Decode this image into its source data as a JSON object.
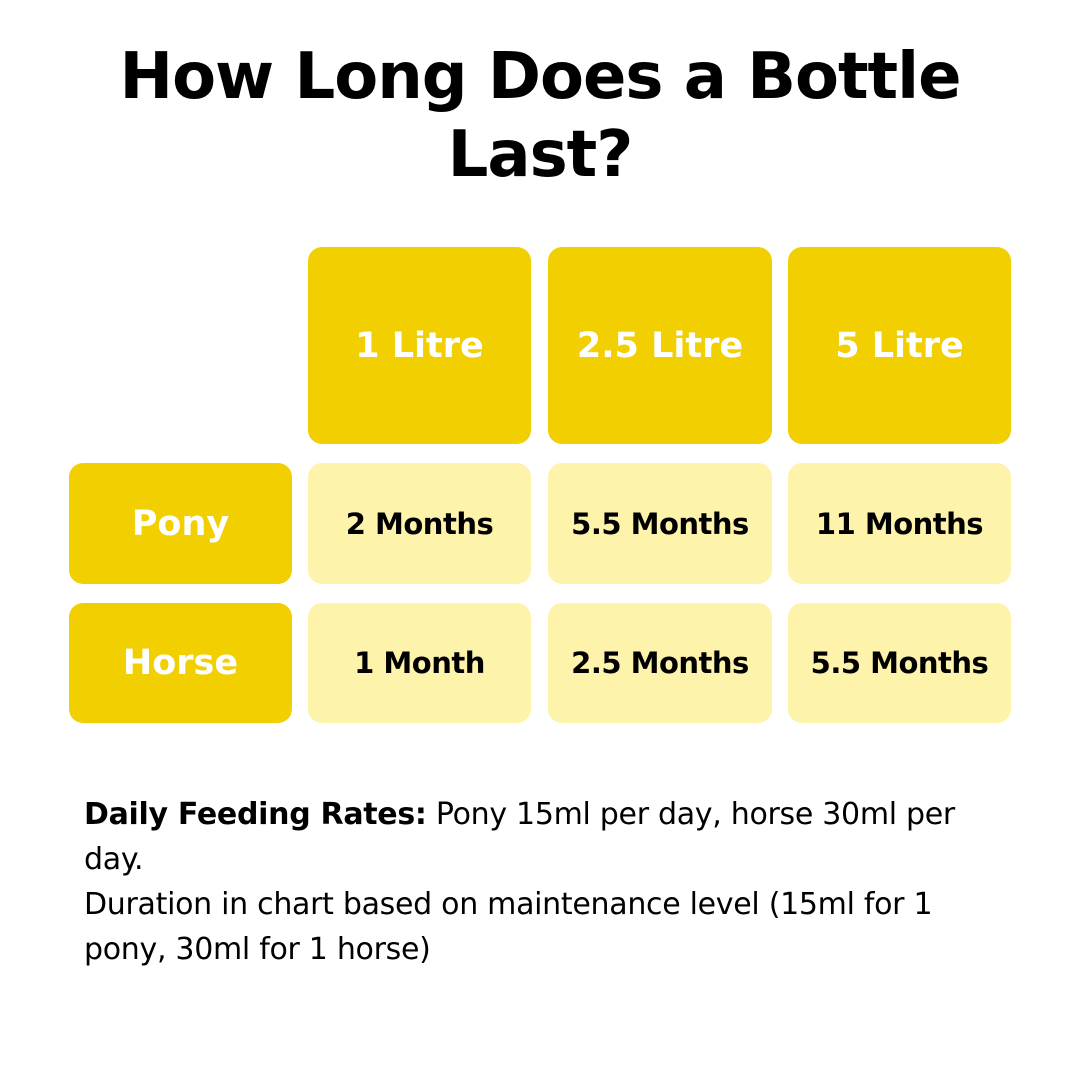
{
  "title": "How Long Does a Bottle Last?",
  "table": {
    "columns": [
      "1 Litre",
      "2.5 Litre",
      "5 Litre"
    ],
    "rows": [
      {
        "label": "Pony",
        "values": [
          "2 Months",
          "5.5 Months",
          "11 Months"
        ]
      },
      {
        "label": "Horse",
        "values": [
          "1 Month",
          "2.5 Months",
          "5.5 Months"
        ]
      }
    ]
  },
  "notes": {
    "label": "Daily Feeding Rates:",
    "rates": "Pony 15ml per day, horse 30ml per day.",
    "duration": "Duration in chart based on maintenance level (15ml for 1 pony, 30ml for 1 horse)"
  },
  "colors": {
    "dark_yellow": "#f1cf00",
    "light_yellow": "#fef3ab"
  }
}
